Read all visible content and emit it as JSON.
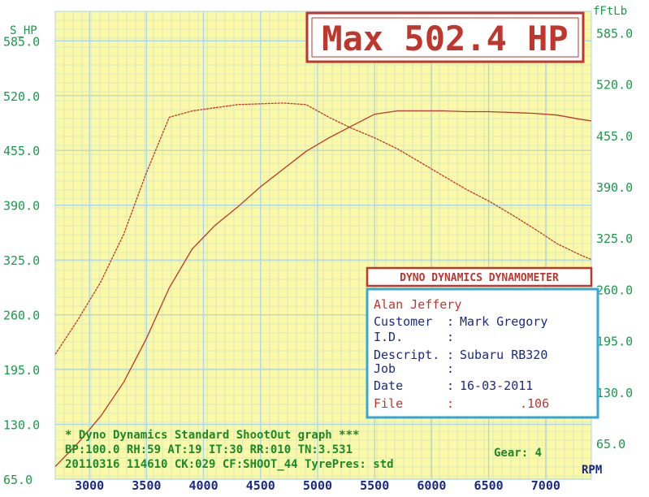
{
  "chart_data": {
    "type": "line",
    "title": "Max 502.4 HP",
    "left_axis_label": "S_HP",
    "right_axis_label": "fFtLb",
    "xlabel": "RPM",
    "xlim": [
      2700,
      7400
    ],
    "ylim_left": [
      65,
      620
    ],
    "ylim_right": [
      20,
      612
    ],
    "x_ticks": [
      "3000",
      "3500",
      "4000",
      "4500",
      "5000",
      "5500",
      "6000",
      "6500",
      "7000"
    ],
    "y_ticks_left": [
      "65.0",
      "130.0",
      "195.0",
      "260.0",
      "325.0",
      "390.0",
      "455.0",
      "520.0",
      "585.0"
    ],
    "y_ticks_right": [
      "65.0",
      "130.0",
      "195.0",
      "260.0",
      "325.0",
      "390.0",
      "455.0",
      "520.0",
      "585.0"
    ],
    "series": [
      {
        "axis": "left",
        "color": "#c0362c",
        "x": [
          2700,
          2900,
          3100,
          3300,
          3500,
          3700,
          3900,
          4100,
          4300,
          4500,
          4700,
          4900,
          5100,
          5300,
          5500,
          5700,
          5900,
          6100,
          6300,
          6500,
          6700,
          6900,
          7100,
          7300,
          7400
        ],
        "values": [
          80,
          108,
          140,
          180,
          232,
          292,
          338,
          366,
          388,
          412,
          433,
          454,
          470,
          484,
          498,
          502,
          502,
          502,
          501,
          501,
          500,
          499,
          497,
          492,
          490
        ]
      },
      {
        "axis": "right",
        "color": "#c0362c",
        "x": [
          2700,
          2900,
          3100,
          3300,
          3500,
          3700,
          3900,
          4100,
          4300,
          4500,
          4700,
          4900,
          5100,
          5300,
          5500,
          5700,
          5900,
          6100,
          6300,
          6500,
          6700,
          6900,
          7100,
          7300,
          7400
        ],
        "values": [
          178,
          222,
          270,
          330,
          408,
          478,
          486,
          490,
          494,
          495,
          496,
          494,
          478,
          464,
          452,
          438,
          421,
          404,
          387,
          372,
          355,
          337,
          318,
          304,
          298
        ]
      }
    ],
    "grid": true
  },
  "info_box": {
    "header": "DYNO DYNAMICS DYNAMOMETER",
    "operator": "Alan Jeffery",
    "rows": [
      {
        "label": "Customer",
        "value": "Mark Gregory"
      },
      {
        "label": "I.D.",
        "value": ""
      },
      {
        "label": "Descript.",
        "value": "Subaru RB320"
      },
      {
        "label": "Job",
        "value": ""
      },
      {
        "label": "Date",
        "value": "16-03-2011"
      },
      {
        "label": "File",
        "value": ".106"
      }
    ]
  },
  "footer": {
    "line1": "* Dyno Dynamics Standard ShootOut graph ***",
    "line2": "BP:100.0 RH:59 AT:19 IT:30  RR:010 TN:3.531",
    "line3": "20110316 114610 CK:029 CF:SHOOT_44 TyrePres: std",
    "gear": "Gear: 4"
  },
  "colors": {
    "plot_bg": "#fbf8a6",
    "grid": "#a9d6ee",
    "axis_text": "#1a9a4a",
    "trace": "#c0362c",
    "banner_border": "#c0362c",
    "box_border": "#35a8d8"
  }
}
